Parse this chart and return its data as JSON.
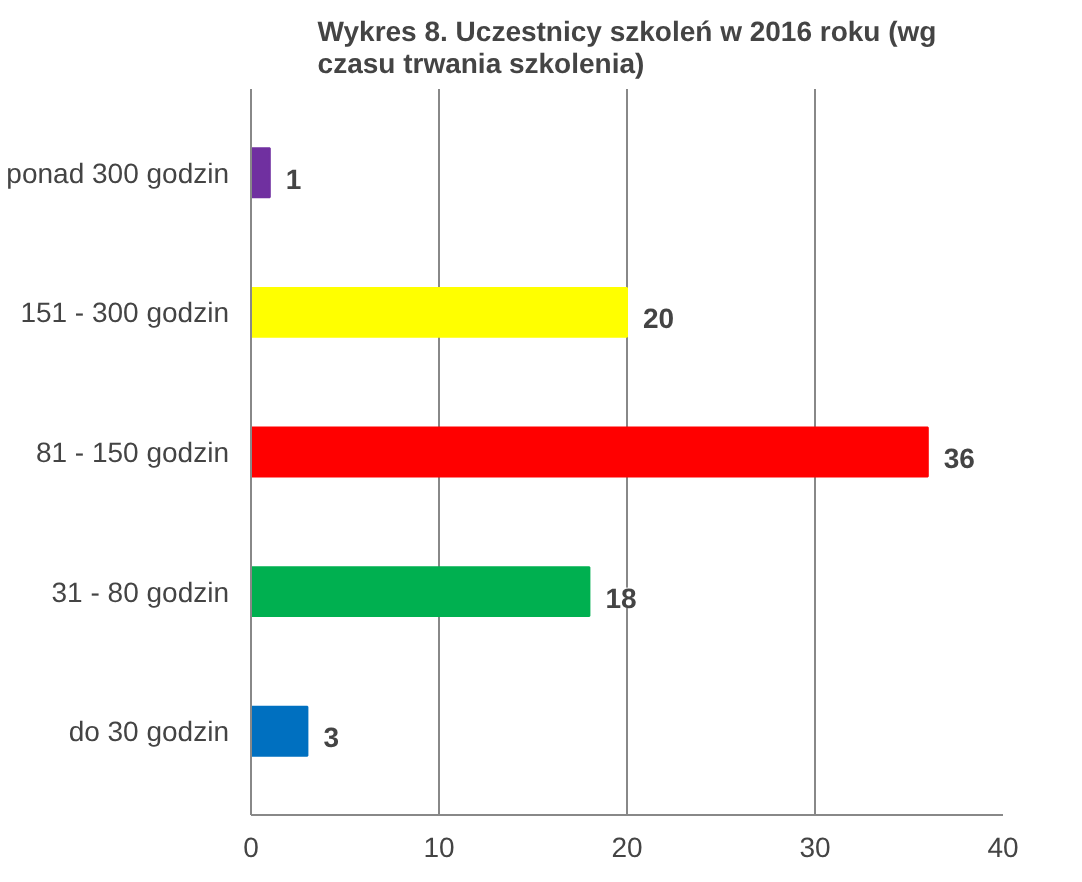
{
  "chart_data": {
    "type": "bar",
    "orientation": "horizontal",
    "title": "Wykres 8. Uczestnicy szkoleń w 2016 roku (wg\nczasu trwania szkolenia)",
    "categories": [
      "ponad 300 godzin",
      "151 - 300 godzin",
      "81 - 150 godzin",
      "31 - 80 godzin",
      "do 30 godzin"
    ],
    "values": [
      1,
      20,
      36,
      18,
      3
    ],
    "colors": [
      "#7030a0",
      "#ffff00",
      "#ff0000",
      "#00b050",
      "#0070c0"
    ],
    "xlim": [
      0,
      40
    ],
    "xticks": [
      0,
      10,
      20,
      30,
      40
    ],
    "grid": "x",
    "data_labels": true
  }
}
